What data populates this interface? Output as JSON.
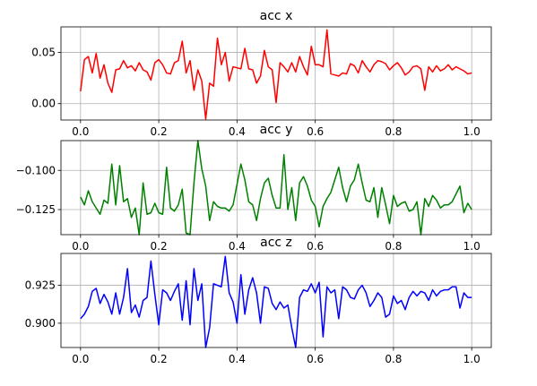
{
  "chart_data": [
    {
      "type": "line",
      "title": "acc x",
      "xlim": [
        -0.05,
        1.05
      ],
      "ylim": [
        -0.016,
        0.075
      ],
      "xticks": [
        "0.0",
        "0.2",
        "0.4",
        "0.6",
        "0.8",
        "1.0"
      ],
      "yticks": [
        "0.00",
        "0.05"
      ],
      "grid": true,
      "color": "#ff0000",
      "series": [
        {
          "x": [
            0,
            0.01,
            0.02,
            0.03,
            0.04,
            0.05,
            0.06,
            0.07,
            0.08,
            0.09,
            0.1,
            0.11,
            0.12,
            0.13,
            0.14,
            0.15,
            0.16,
            0.17,
            0.18,
            0.19,
            0.2,
            0.21,
            0.22,
            0.23,
            0.24,
            0.25,
            0.26,
            0.27,
            0.28,
            0.29,
            0.3,
            0.31,
            0.32,
            0.33,
            0.34,
            0.35,
            0.36,
            0.37,
            0.38,
            0.39,
            0.4,
            0.41,
            0.42,
            0.43,
            0.44,
            0.45,
            0.46,
            0.47,
            0.48,
            0.49,
            0.5,
            0.51,
            0.52,
            0.53,
            0.54,
            0.55,
            0.56,
            0.57,
            0.58,
            0.59,
            0.6,
            0.61,
            0.62,
            0.63,
            0.64,
            0.65,
            0.66,
            0.67,
            0.68,
            0.69,
            0.7,
            0.71,
            0.72,
            0.73,
            0.74,
            0.75,
            0.76,
            0.77,
            0.78,
            0.79,
            0.8,
            0.81,
            0.82,
            0.83,
            0.84,
            0.85,
            0.86,
            0.87,
            0.88,
            0.89,
            0.9,
            0.91,
            0.92,
            0.93,
            0.94,
            0.95,
            0.96,
            0.97,
            0.98,
            0.99,
            1.0
          ],
          "y": [
            0.012,
            0.043,
            0.046,
            0.03,
            0.049,
            0.025,
            0.038,
            0.02,
            0.011,
            0.033,
            0.034,
            0.042,
            0.035,
            0.037,
            0.032,
            0.04,
            0.033,
            0.031,
            0.023,
            0.04,
            0.043,
            0.038,
            0.03,
            0.029,
            0.04,
            0.042,
            0.061,
            0.03,
            0.042,
            0.013,
            0.033,
            0.022,
            -0.015,
            0.02,
            0.017,
            0.064,
            0.038,
            0.05,
            0.022,
            0.036,
            0.035,
            0.034,
            0.054,
            0.034,
            0.033,
            0.02,
            0.027,
            0.052,
            0.036,
            0.033,
            0.001,
            0.04,
            0.036,
            0.031,
            0.04,
            0.031,
            0.046,
            0.036,
            0.028,
            0.056,
            0.038,
            0.038,
            0.036,
            0.072,
            0.029,
            0.028,
            0.027,
            0.03,
            0.029,
            0.039,
            0.037,
            0.03,
            0.042,
            0.036,
            0.031,
            0.038,
            0.042,
            0.041,
            0.039,
            0.033,
            0.037,
            0.04,
            0.035,
            0.028,
            0.031,
            0.036,
            0.037,
            0.034,
            0.013,
            0.036,
            0.031,
            0.037,
            0.032,
            0.034,
            0.038,
            0.033,
            0.036,
            0.034,
            0.032,
            0.029,
            0.03
          ]
        }
      ]
    },
    {
      "type": "line",
      "title": "acc y",
      "xlim": [
        -0.05,
        1.05
      ],
      "ylim": [
        -0.141,
        -0.081
      ],
      "xticks": [
        "0.0",
        "0.2",
        "0.4",
        "0.6",
        "0.8",
        "1.0"
      ],
      "yticks": [
        "−0.125",
        "−0.100"
      ],
      "grid": true,
      "color": "#008000",
      "series": [
        {
          "x": [
            0,
            0.01,
            0.02,
            0.03,
            0.04,
            0.05,
            0.06,
            0.07,
            0.08,
            0.09,
            0.1,
            0.11,
            0.12,
            0.13,
            0.14,
            0.15,
            0.16,
            0.17,
            0.18,
            0.19,
            0.2,
            0.21,
            0.22,
            0.23,
            0.24,
            0.25,
            0.26,
            0.27,
            0.28,
            0.29,
            0.3,
            0.31,
            0.32,
            0.33,
            0.34,
            0.35,
            0.36,
            0.37,
            0.38,
            0.39,
            0.4,
            0.41,
            0.42,
            0.43,
            0.44,
            0.45,
            0.46,
            0.47,
            0.48,
            0.49,
            0.5,
            0.51,
            0.52,
            0.53,
            0.54,
            0.55,
            0.56,
            0.57,
            0.58,
            0.59,
            0.6,
            0.61,
            0.62,
            0.63,
            0.64,
            0.65,
            0.66,
            0.67,
            0.68,
            0.69,
            0.7,
            0.71,
            0.72,
            0.73,
            0.74,
            0.75,
            0.76,
            0.77,
            0.78,
            0.79,
            0.8,
            0.81,
            0.82,
            0.83,
            0.84,
            0.85,
            0.86,
            0.87,
            0.88,
            0.89,
            0.9,
            0.91,
            0.92,
            0.93,
            0.94,
            0.95,
            0.96,
            0.97,
            0.98,
            0.99,
            1.0
          ],
          "y": [
            -0.117,
            -0.122,
            -0.113,
            -0.12,
            -0.124,
            -0.128,
            -0.119,
            -0.121,
            -0.096,
            -0.122,
            -0.097,
            -0.12,
            -0.118,
            -0.13,
            -0.124,
            -0.141,
            -0.108,
            -0.128,
            -0.127,
            -0.121,
            -0.127,
            -0.128,
            -0.098,
            -0.124,
            -0.126,
            -0.122,
            -0.112,
            -0.14,
            -0.141,
            -0.108,
            -0.081,
            -0.099,
            -0.11,
            -0.132,
            -0.12,
            -0.123,
            -0.124,
            -0.124,
            -0.126,
            -0.122,
            -0.109,
            -0.096,
            -0.106,
            -0.12,
            -0.122,
            -0.132,
            -0.118,
            -0.108,
            -0.105,
            -0.116,
            -0.124,
            -0.124,
            -0.09,
            -0.125,
            -0.111,
            -0.132,
            -0.108,
            -0.104,
            -0.11,
            -0.119,
            -0.123,
            -0.136,
            -0.123,
            -0.118,
            -0.114,
            -0.106,
            -0.098,
            -0.111,
            -0.12,
            -0.11,
            -0.106,
            -0.096,
            -0.108,
            -0.119,
            -0.12,
            -0.111,
            -0.13,
            -0.111,
            -0.122,
            -0.134,
            -0.116,
            -0.123,
            -0.121,
            -0.12,
            -0.126,
            -0.125,
            -0.12,
            -0.141,
            -0.118,
            -0.123,
            -0.116,
            -0.119,
            -0.124,
            -0.122,
            -0.122,
            -0.12,
            -0.115,
            -0.11,
            -0.127,
            -0.121,
            -0.125
          ]
        }
      ]
    },
    {
      "type": "line",
      "title": "acc z",
      "xlim": [
        -0.05,
        1.05
      ],
      "ylim": [
        0.884,
        0.946
      ],
      "xticks": [
        "0.0",
        "0.2",
        "0.4",
        "0.6",
        "0.8",
        "1.0"
      ],
      "yticks": [
        "0.900",
        "0.925"
      ],
      "grid": true,
      "color": "#0000ff",
      "series": [
        {
          "x": [
            0,
            0.01,
            0.02,
            0.03,
            0.04,
            0.05,
            0.06,
            0.07,
            0.08,
            0.09,
            0.1,
            0.11,
            0.12,
            0.13,
            0.14,
            0.15,
            0.16,
            0.17,
            0.18,
            0.19,
            0.2,
            0.21,
            0.22,
            0.23,
            0.24,
            0.25,
            0.26,
            0.27,
            0.28,
            0.29,
            0.3,
            0.31,
            0.32,
            0.33,
            0.34,
            0.35,
            0.36,
            0.37,
            0.38,
            0.39,
            0.4,
            0.41,
            0.42,
            0.43,
            0.44,
            0.45,
            0.46,
            0.47,
            0.48,
            0.49,
            0.5,
            0.51,
            0.52,
            0.53,
            0.54,
            0.55,
            0.56,
            0.57,
            0.58,
            0.59,
            0.6,
            0.61,
            0.62,
            0.63,
            0.64,
            0.65,
            0.66,
            0.67,
            0.68,
            0.69,
            0.7,
            0.71,
            0.72,
            0.73,
            0.74,
            0.75,
            0.76,
            0.77,
            0.78,
            0.79,
            0.8,
            0.81,
            0.82,
            0.83,
            0.84,
            0.85,
            0.86,
            0.87,
            0.88,
            0.89,
            0.9,
            0.91,
            0.92,
            0.93,
            0.94,
            0.95,
            0.96,
            0.97,
            0.98,
            0.99,
            1.0
          ],
          "y": [
            0.903,
            0.906,
            0.911,
            0.921,
            0.923,
            0.913,
            0.919,
            0.914,
            0.906,
            0.92,
            0.906,
            0.917,
            0.936,
            0.907,
            0.912,
            0.904,
            0.915,
            0.917,
            0.941,
            0.919,
            0.899,
            0.922,
            0.92,
            0.915,
            0.921,
            0.926,
            0.902,
            0.928,
            0.899,
            0.936,
            0.915,
            0.926,
            0.884,
            0.897,
            0.926,
            0.925,
            0.924,
            0.944,
            0.92,
            0.914,
            0.9,
            0.932,
            0.906,
            0.922,
            0.93,
            0.92,
            0.9,
            0.924,
            0.923,
            0.913,
            0.909,
            0.914,
            0.91,
            0.912,
            0.897,
            0.884,
            0.917,
            0.922,
            0.921,
            0.926,
            0.92,
            0.927,
            0.891,
            0.924,
            0.92,
            0.922,
            0.903,
            0.924,
            0.922,
            0.917,
            0.916,
            0.922,
            0.925,
            0.92,
            0.911,
            0.915,
            0.92,
            0.917,
            0.904,
            0.906,
            0.918,
            0.913,
            0.915,
            0.909,
            0.917,
            0.921,
            0.918,
            0.921,
            0.92,
            0.915,
            0.922,
            0.918,
            0.921,
            0.922,
            0.922,
            0.924,
            0.924,
            0.91,
            0.92,
            0.917,
            0.917
          ]
        }
      ]
    }
  ]
}
